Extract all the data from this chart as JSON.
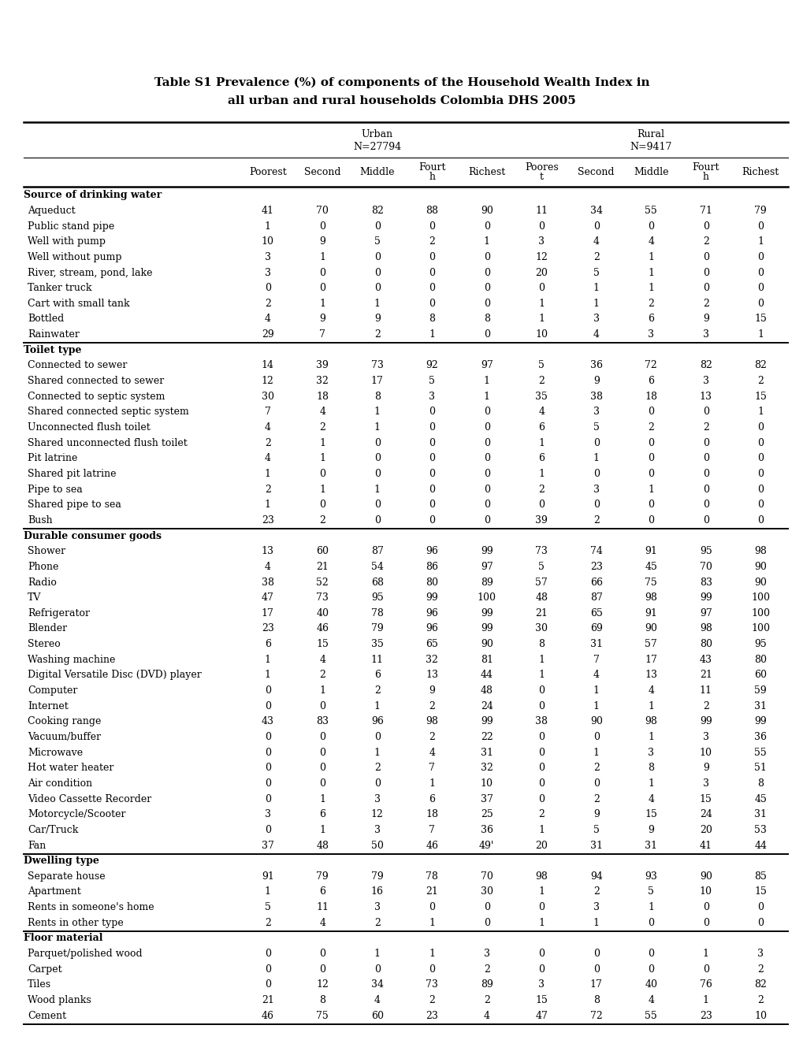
{
  "title_line1": "Table S1 Prevalence (%) of components of the Household Wealth Index in",
  "title_line2": "all urban and rural households Colombia DHS 2005",
  "urban_label": "Urban",
  "urban_n": "N=27794",
  "rural_label": "Rural",
  "rural_n": "N=9417",
  "sections": [
    {
      "name": "Source of drinking water",
      "rows": [
        [
          "Aqueduct",
          "41",
          "70",
          "82",
          "88",
          "90",
          "11",
          "34",
          "55",
          "71",
          "79"
        ],
        [
          "Public stand pipe",
          "1",
          "0",
          "0",
          "0",
          "0",
          "0",
          "0",
          "0",
          "0",
          "0"
        ],
        [
          "Well with pump",
          "10",
          "9",
          "5",
          "2",
          "1",
          "3",
          "4",
          "4",
          "2",
          "1"
        ],
        [
          "Well without pump",
          "3",
          "1",
          "0",
          "0",
          "0",
          "12",
          "2",
          "1",
          "0",
          "0"
        ],
        [
          "River, stream, pond, lake",
          "3",
          "0",
          "0",
          "0",
          "0",
          "20",
          "5",
          "1",
          "0",
          "0"
        ],
        [
          "Tanker truck",
          "0",
          "0",
          "0",
          "0",
          "0",
          "0",
          "1",
          "1",
          "0",
          "0"
        ],
        [
          "Cart with small tank",
          "2",
          "1",
          "1",
          "0",
          "0",
          "1",
          "1",
          "2",
          "2",
          "0"
        ],
        [
          "Bottled",
          "4",
          "9",
          "9",
          "8",
          "8",
          "1",
          "3",
          "6",
          "9",
          "15"
        ],
        [
          "Rainwater",
          "29",
          "7",
          "2",
          "1",
          "0",
          "10",
          "4",
          "3",
          "3",
          "1"
        ]
      ]
    },
    {
      "name": "Toilet type",
      "rows": [
        [
          "Connected to sewer",
          "14",
          "39",
          "73",
          "92",
          "97",
          "5",
          "36",
          "72",
          "82",
          "82"
        ],
        [
          "Shared connected to sewer",
          "12",
          "32",
          "17",
          "5",
          "1",
          "2",
          "9",
          "6",
          "3",
          "2"
        ],
        [
          "Connected to septic system",
          "30",
          "18",
          "8",
          "3",
          "1",
          "35",
          "38",
          "18",
          "13",
          "15"
        ],
        [
          "Shared connected septic system",
          "7",
          "4",
          "1",
          "0",
          "0",
          "4",
          "3",
          "0",
          "0",
          "1"
        ],
        [
          "Unconnected flush toilet",
          "4",
          "2",
          "1",
          "0",
          "0",
          "6",
          "5",
          "2",
          "2",
          "0"
        ],
        [
          "Shared unconnected flush toilet",
          "2",
          "1",
          "0",
          "0",
          "0",
          "1",
          "0",
          "0",
          "0",
          "0"
        ],
        [
          "Pit latrine",
          "4",
          "1",
          "0",
          "0",
          "0",
          "6",
          "1",
          "0",
          "0",
          "0"
        ],
        [
          "Shared pit latrine",
          "1",
          "0",
          "0",
          "0",
          "0",
          "1",
          "0",
          "0",
          "0",
          "0"
        ],
        [
          "Pipe to sea",
          "2",
          "1",
          "1",
          "0",
          "0",
          "2",
          "3",
          "1",
          "0",
          "0"
        ],
        [
          "Shared pipe to sea",
          "1",
          "0",
          "0",
          "0",
          "0",
          "0",
          "0",
          "0",
          "0",
          "0"
        ],
        [
          "Bush",
          "23",
          "2",
          "0",
          "0",
          "0",
          "39",
          "2",
          "0",
          "0",
          "0"
        ]
      ]
    },
    {
      "name": "Durable consumer goods",
      "rows": [
        [
          "Shower",
          "13",
          "60",
          "87",
          "96",
          "99",
          "73",
          "74",
          "91",
          "95",
          "98"
        ],
        [
          "Phone",
          "4",
          "21",
          "54",
          "86",
          "97",
          "5",
          "23",
          "45",
          "70",
          "90"
        ],
        [
          "Radio",
          "38",
          "52",
          "68",
          "80",
          "89",
          "57",
          "66",
          "75",
          "83",
          "90"
        ],
        [
          "TV",
          "47",
          "73",
          "95",
          "99",
          "100",
          "48",
          "87",
          "98",
          "99",
          "100"
        ],
        [
          "Refrigerator",
          "17",
          "40",
          "78",
          "96",
          "99",
          "21",
          "65",
          "91",
          "97",
          "100"
        ],
        [
          "Blender",
          "23",
          "46",
          "79",
          "96",
          "99",
          "30",
          "69",
          "90",
          "98",
          "100"
        ],
        [
          "Stereo",
          "6",
          "15",
          "35",
          "65",
          "90",
          "8",
          "31",
          "57",
          "80",
          "95"
        ],
        [
          "Washing machine",
          "1",
          "4",
          "11",
          "32",
          "81",
          "1",
          "7",
          "17",
          "43",
          "80"
        ],
        [
          "Digital Versatile Disc (DVD) player",
          "1",
          "2",
          "6",
          "13",
          "44",
          "1",
          "4",
          "13",
          "21",
          "60"
        ],
        [
          "Computer",
          "0",
          "1",
          "2",
          "9",
          "48",
          "0",
          "1",
          "4",
          "11",
          "59"
        ],
        [
          "Internet",
          "0",
          "0",
          "1",
          "2",
          "24",
          "0",
          "1",
          "1",
          "2",
          "31"
        ],
        [
          "Cooking range",
          "43",
          "83",
          "96",
          "98",
          "99",
          "38",
          "90",
          "98",
          "99",
          "99"
        ],
        [
          "Vacuum/buffer",
          "0",
          "0",
          "0",
          "2",
          "22",
          "0",
          "0",
          "1",
          "3",
          "36"
        ],
        [
          "Microwave",
          "0",
          "0",
          "1",
          "4",
          "31",
          "0",
          "1",
          "3",
          "10",
          "55"
        ],
        [
          "Hot water heater",
          "0",
          "0",
          "2",
          "7",
          "32",
          "0",
          "2",
          "8",
          "9",
          "51"
        ],
        [
          "Air condition",
          "0",
          "0",
          "0",
          "1",
          "10",
          "0",
          "0",
          "1",
          "3",
          "8"
        ],
        [
          "Video Cassette Recorder",
          "0",
          "1",
          "3",
          "6",
          "37",
          "0",
          "2",
          "4",
          "15",
          "45"
        ],
        [
          "Motorcycle/Scooter",
          "3",
          "6",
          "12",
          "18",
          "25",
          "2",
          "9",
          "15",
          "24",
          "31"
        ],
        [
          "Car/Truck",
          "0",
          "1",
          "3",
          "7",
          "36",
          "1",
          "5",
          "9",
          "20",
          "53"
        ],
        [
          "Fan",
          "37",
          "48",
          "50",
          "46",
          "49'",
          "20",
          "31",
          "31",
          "41",
          "44"
        ]
      ]
    },
    {
      "name": "Dwelling type",
      "rows": [
        [
          "Separate house",
          "91",
          "79",
          "79",
          "78",
          "70",
          "98",
          "94",
          "93",
          "90",
          "85"
        ],
        [
          "Apartment",
          "1",
          "6",
          "16",
          "21",
          "30",
          "1",
          "2",
          "5",
          "10",
          "15"
        ],
        [
          "Rents in someone's home",
          "5",
          "11",
          "3",
          "0",
          "0",
          "0",
          "3",
          "1",
          "0",
          "0"
        ],
        [
          "Rents in other type",
          "2",
          "4",
          "2",
          "1",
          "0",
          "1",
          "1",
          "0",
          "0",
          "0"
        ]
      ]
    },
    {
      "name": "Floor material",
      "rows": [
        [
          "Parquet/polished wood",
          "0",
          "0",
          "1",
          "1",
          "3",
          "0",
          "0",
          "0",
          "1",
          "3"
        ],
        [
          "Carpet",
          "0",
          "0",
          "0",
          "0",
          "2",
          "0",
          "0",
          "0",
          "0",
          "2"
        ],
        [
          "Tiles",
          "0",
          "12",
          "34",
          "73",
          "89",
          "3",
          "17",
          "40",
          "76",
          "82"
        ],
        [
          "Wood planks",
          "21",
          "8",
          "4",
          "2",
          "2",
          "15",
          "8",
          "4",
          "1",
          "2"
        ],
        [
          "Cement",
          "46",
          "75",
          "60",
          "23",
          "4",
          "47",
          "72",
          "55",
          "23",
          "10"
        ]
      ]
    }
  ]
}
